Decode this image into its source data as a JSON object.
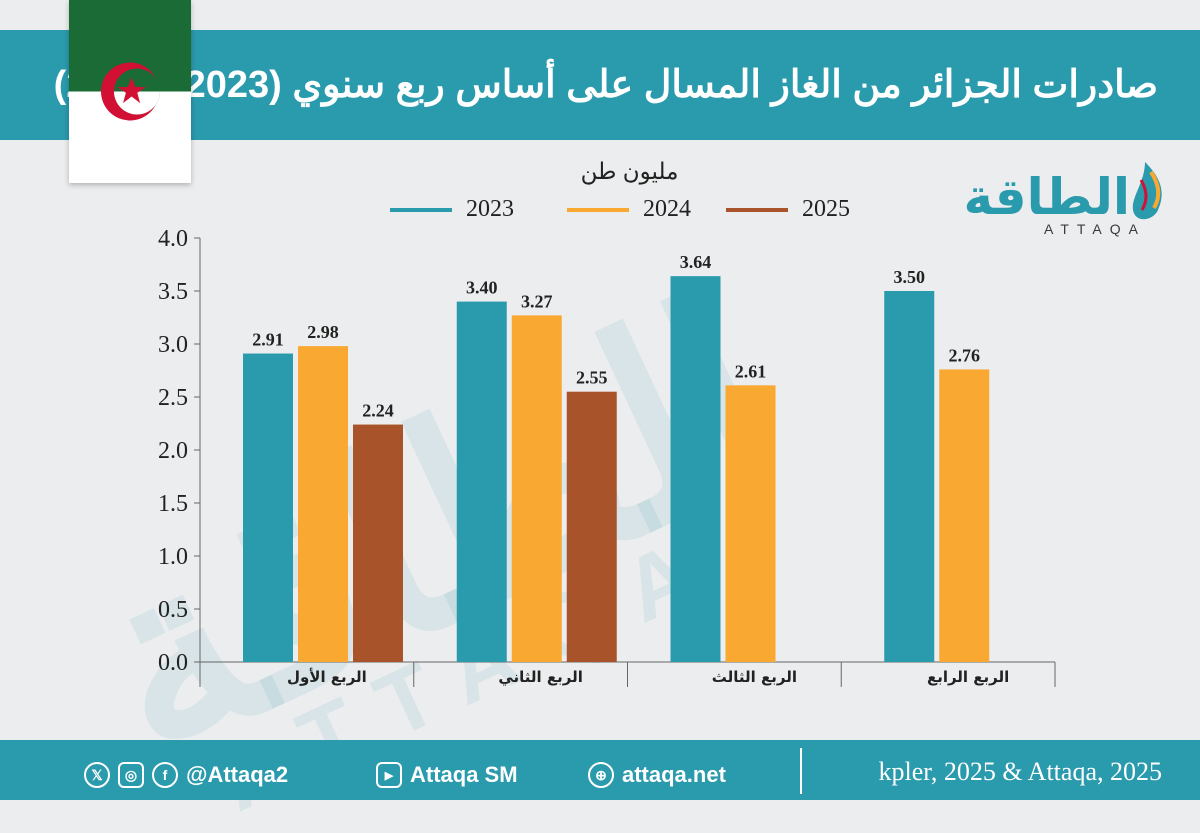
{
  "title": "صادرات الجزائر من الغاز المسال على أساس ربع سنوي (2023 - 2025)",
  "logo": {
    "arabic": "الطاقة",
    "latin": "ATTAQA"
  },
  "colors": {
    "header": "#2a9aad",
    "s2023": "#2a9aad",
    "s2024": "#f9a832",
    "s2025": "#a8532a"
  },
  "chart_data": {
    "type": "bar",
    "unit": "مليون طن",
    "categories": [
      "الربع الأول",
      "الربع الثاني",
      "الربع الثالث",
      "الربع الرابع"
    ],
    "series": [
      {
        "name": "2023",
        "values": [
          2.91,
          3.4,
          3.64,
          3.5
        ]
      },
      {
        "name": "2024",
        "values": [
          2.98,
          3.27,
          2.61,
          2.76
        ]
      },
      {
        "name": "2025",
        "values": [
          2.24,
          2.55,
          null,
          null
        ]
      }
    ],
    "ylim": [
      0,
      4.0
    ],
    "yticks": [
      "0.0",
      "0.5",
      "1.0",
      "1.5",
      "2.0",
      "2.5",
      "3.0",
      "3.5",
      "4.0"
    ],
    "grid": false,
    "legend_position": "top-center"
  },
  "footer": {
    "handle": "@Attaqa2",
    "youtube": "Attaqa SM",
    "website": "attaqa.net",
    "source": "kpler, 2025 & Attaqa, 2025",
    "icons": [
      "x-icon",
      "instagram-icon",
      "facebook-icon",
      "youtube-icon",
      "web-icon"
    ]
  }
}
